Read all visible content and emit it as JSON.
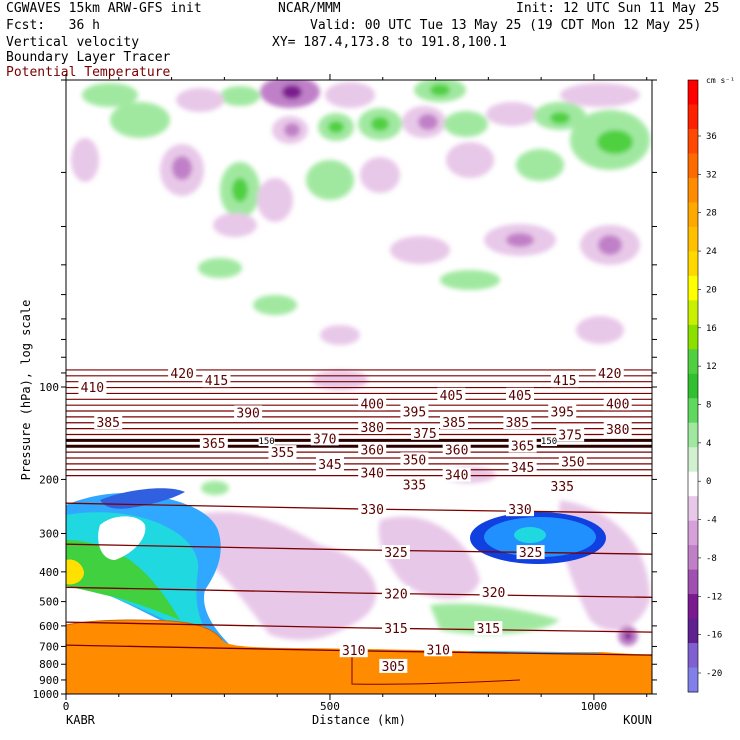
{
  "header": {
    "model_line": "CGWAVES 15km ARW-GFS init",
    "org": "NCAR/MMM",
    "init": "Init: 12 UTC Sun 11 May 25",
    "fcst": "Fcst:   36 h",
    "valid": "Valid: 00 UTC Tue 13 May 25 (19 CDT Mon 12 May 25)",
    "field1": "Vertical velocity",
    "xy": "XY= 187.4,173.8 to 191.8,100.1",
    "field2": "Boundary Layer Tracer",
    "field3": "Potential Temperature",
    "field3_color": "#7a0000"
  },
  "chart_data": {
    "type": "heatmap",
    "title": "Vertical velocity cross-section",
    "xlabel": "Distance (km)",
    "ylabel": "Pressure (hPa), log scale",
    "xlim": [
      0,
      1110
    ],
    "ylim": [
      1000,
      10
    ],
    "x_ticks": [
      0,
      500,
      1000
    ],
    "x_tick_labels": [
      "0",
      "500",
      "1000"
    ],
    "y_ticks": [
      100,
      200,
      300,
      400,
      500,
      600,
      700,
      800,
      900,
      1000
    ],
    "y_tick_labels": [
      "100",
      "200",
      "300",
      "400",
      "500",
      "600",
      "700",
      "800",
      "900",
      "1000"
    ],
    "endpoints": {
      "left": "KABR",
      "right": "KOUN"
    },
    "colorbar": {
      "unit": "cm s⁻¹",
      "tick_labels": [
        "36",
        "32",
        "28",
        "24",
        "20",
        "16",
        "12",
        "8",
        "4",
        "0",
        "-4",
        "-8",
        "-12",
        "-16",
        "-20"
      ],
      "colors": [
        "#e8c8e8",
        "#d8a0d8",
        "#c080c8",
        "#a050b0",
        "#7a1a90",
        "#602090",
        "#8060d0",
        "#8080e8"
      ],
      "colors_pos": [
        "#ff0000",
        "#ff2000",
        "#ff4800",
        "#ff6a00",
        "#ff8c00",
        "#ffa800",
        "#ffc000",
        "#ffd800",
        "#ffff00",
        "#c8f000",
        "#8ce000",
        "#50d040",
        "#30c030",
        "#60d860",
        "#a0e8a0",
        "#d0f0d0",
        "#ffffff"
      ]
    },
    "theta_labels": [
      {
        "value": "420",
        "x": 220,
        "p": 90
      },
      {
        "value": "415",
        "x": 285,
        "p": 95
      },
      {
        "value": "410",
        "x": 50,
        "p": 100
      },
      {
        "value": "420",
        "x": 1030,
        "p": 90
      },
      {
        "value": "415",
        "x": 945,
        "p": 95
      },
      {
        "value": "405",
        "x": 730,
        "p": 106
      },
      {
        "value": "405",
        "x": 860,
        "p": 106
      },
      {
        "value": "400",
        "x": 580,
        "p": 113
      },
      {
        "value": "400",
        "x": 1045,
        "p": 113
      },
      {
        "value": "395",
        "x": 660,
        "p": 120
      },
      {
        "value": "395",
        "x": 940,
        "p": 120
      },
      {
        "value": "390",
        "x": 345,
        "p": 121
      },
      {
        "value": "385",
        "x": 80,
        "p": 130
      },
      {
        "value": "385",
        "x": 735,
        "p": 130
      },
      {
        "value": "385",
        "x": 855,
        "p": 130
      },
      {
        "value": "380",
        "x": 580,
        "p": 135
      },
      {
        "value": "380",
        "x": 1045,
        "p": 137
      },
      {
        "value": "375",
        "x": 680,
        "p": 141
      },
      {
        "value": "375",
        "x": 955,
        "p": 143
      },
      {
        "value": "370",
        "x": 490,
        "p": 147
      },
      {
        "value": "365",
        "x": 280,
        "p": 152
      },
      {
        "value": "365",
        "x": 865,
        "p": 155
      },
      {
        "value": "360",
        "x": 580,
        "p": 160
      },
      {
        "value": "360",
        "x": 740,
        "p": 160
      },
      {
        "value": "355",
        "x": 410,
        "p": 163
      },
      {
        "value": "350",
        "x": 660,
        "p": 172
      },
      {
        "value": "350",
        "x": 960,
        "p": 175
      },
      {
        "value": "345",
        "x": 500,
        "p": 178
      },
      {
        "value": "345",
        "x": 865,
        "p": 182
      },
      {
        "value": "340",
        "x": 580,
        "p": 190
      },
      {
        "value": "340",
        "x": 740,
        "p": 193
      },
      {
        "value": "335",
        "x": 660,
        "p": 208
      },
      {
        "value": "335",
        "x": 940,
        "p": 210
      },
      {
        "value": "330",
        "x": 580,
        "p": 250
      },
      {
        "value": "330",
        "x": 860,
        "p": 250
      },
      {
        "value": "325",
        "x": 625,
        "p": 345
      },
      {
        "value": "325",
        "x": 880,
        "p": 345
      },
      {
        "value": "320",
        "x": 625,
        "p": 470
      },
      {
        "value": "320",
        "x": 810,
        "p": 465
      },
      {
        "value": "315",
        "x": 625,
        "p": 610
      },
      {
        "value": "315",
        "x": 800,
        "p": 610
      },
      {
        "value": "310",
        "x": 545,
        "p": 720
      },
      {
        "value": "310",
        "x": 705,
        "p": 715
      },
      {
        "value": "305",
        "x": 620,
        "p": 810
      },
      {
        "value": "150",
        "x": 380,
        "p": 150
      },
      {
        "value": "150",
        "x": 915,
        "p": 150
      }
    ]
  }
}
